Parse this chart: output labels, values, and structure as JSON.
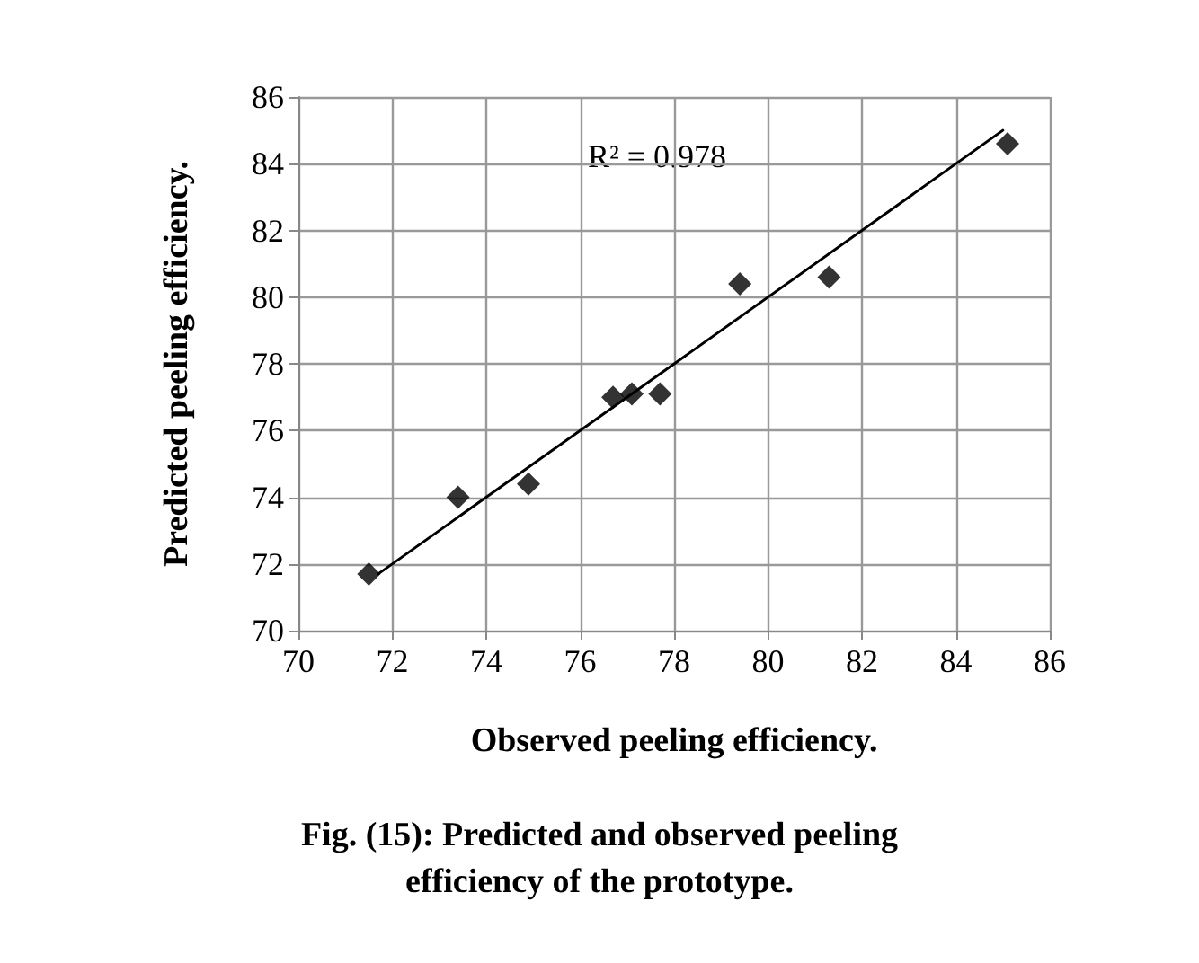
{
  "chart_data": {
    "type": "scatter",
    "title": "Fig. (15): Predicted and observed peeling efficiency of the prototype.",
    "xlabel": "Observed peeling efficiency.",
    "ylabel": "Predicted peeling efficiency.",
    "annotations": [
      "R² = 0.978"
    ],
    "series": [
      {
        "color": "#000000",
        "marker": "diamond",
        "x": [
          71.5,
          73.4,
          74.9,
          76.7,
          77.1,
          77.7,
          79.4,
          81.3,
          85.1
        ],
        "values": [
          71.7,
          74.0,
          74.4,
          77.0,
          77.1,
          77.1,
          80.4,
          80.6,
          84.6
        ]
      },
      {
        "type": "line",
        "color": "#000000",
        "marker": "none",
        "line_style": "solid",
        "x": [
          71.7,
          85.0
        ],
        "values": [
          71.7,
          85.0
        ]
      }
    ],
    "xlim": [
      70,
      86
    ],
    "xticks": [
      70,
      72,
      74,
      76,
      78,
      80,
      82,
      84,
      86
    ],
    "ylim": [
      70,
      86
    ],
    "yticks": [
      70,
      72,
      74,
      76,
      78,
      80,
      82,
      84,
      86
    ],
    "grid": true
  }
}
